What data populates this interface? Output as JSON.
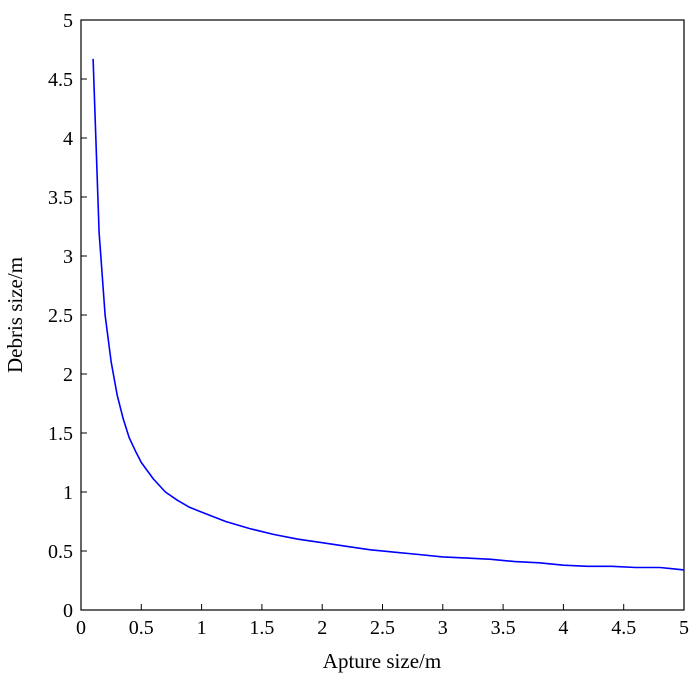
{
  "chart_data": {
    "type": "line",
    "title": "",
    "xlabel": "Apture size/m",
    "ylabel": "Debris size/m",
    "xlim": [
      0,
      5
    ],
    "ylim": [
      0,
      5
    ],
    "x_ticks": [
      0,
      0.5,
      1,
      1.5,
      2,
      2.5,
      3,
      3.5,
      4,
      4.5,
      5
    ],
    "x_tick_labels": [
      "0",
      "0.5",
      "1",
      "1.5",
      "2",
      "2.5",
      "3",
      "3.5",
      "4",
      "4.5",
      "5"
    ],
    "y_ticks": [
      0,
      0.5,
      1,
      1.5,
      2,
      2.5,
      3,
      3.5,
      4,
      4.5,
      5
    ],
    "y_tick_labels": [
      "0",
      "0.5",
      "1",
      "1.5",
      "2",
      "2.5",
      "3",
      "3.5",
      "4",
      "4.5",
      "5"
    ],
    "grid": false,
    "legend": "none",
    "series": [
      {
        "color": "#0000ff",
        "x": [
          0.1,
          0.15,
          0.2,
          0.25,
          0.3,
          0.35,
          0.4,
          0.45,
          0.5,
          0.6,
          0.7,
          0.8,
          0.9,
          1.0,
          1.2,
          1.4,
          1.6,
          1.8,
          2.0,
          2.2,
          2.4,
          2.6,
          2.8,
          3.0,
          3.2,
          3.4,
          3.6,
          3.8,
          4.0,
          4.2,
          4.4,
          4.6,
          4.8,
          4.9,
          5.0
        ],
        "y": [
          4.67,
          3.2,
          2.5,
          2.1,
          1.82,
          1.62,
          1.46,
          1.35,
          1.25,
          1.11,
          1.0,
          0.93,
          0.87,
          0.83,
          0.75,
          0.69,
          0.64,
          0.6,
          0.57,
          0.54,
          0.51,
          0.49,
          0.47,
          0.45,
          0.44,
          0.43,
          0.41,
          0.4,
          0.38,
          0.37,
          0.37,
          0.36,
          0.36,
          0.35,
          0.34
        ]
      }
    ]
  }
}
